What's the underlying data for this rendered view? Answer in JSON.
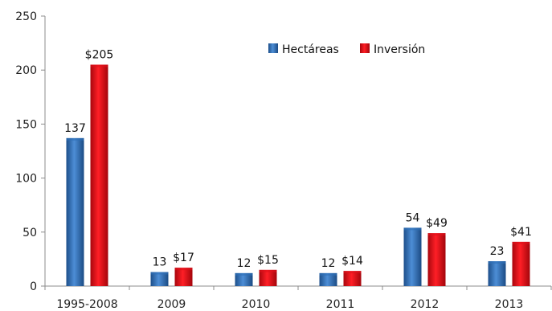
{
  "chart_data": {
    "type": "bar",
    "title": "",
    "xlabel": "",
    "ylabel": "",
    "ylim": [
      0,
      250
    ],
    "yticks": [
      0,
      50,
      100,
      150,
      200,
      250
    ],
    "grid": false,
    "legend_position": "top-right",
    "categories": [
      "1995-2008",
      "2009",
      "2010",
      "2011",
      "2012",
      "2013"
    ],
    "series": [
      {
        "name": "Hectáreas",
        "color": "#2e6fb8",
        "values": [
          137,
          13,
          12,
          12,
          54,
          23
        ],
        "labels": [
          "137",
          "13",
          "12",
          "12",
          "54",
          "23"
        ]
      },
      {
        "name": "Inversión",
        "color": "#e0111a",
        "values": [
          205,
          17,
          15,
          14,
          49,
          41
        ],
        "labels": [
          "$205",
          "$17",
          "$15",
          "$14",
          "$49",
          "$41"
        ]
      }
    ]
  }
}
